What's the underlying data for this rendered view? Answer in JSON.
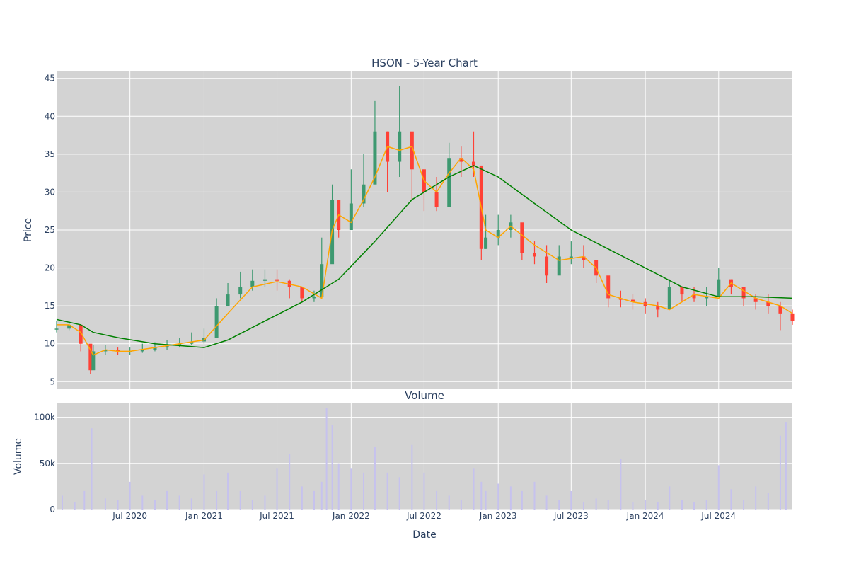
{
  "chart_data": [
    {
      "type": "candlestick",
      "title": "HSON - 5-Year Chart",
      "xlabel": "",
      "ylabel": "Price",
      "ylim": [
        4,
        46
      ],
      "yticks": [
        5,
        10,
        15,
        20,
        25,
        30,
        35,
        40,
        45
      ],
      "xrange": [
        "2020-01-01",
        "2024-12-31"
      ],
      "grid": true,
      "colors": {
        "increasing": "#3d9970",
        "decreasing": "#ff4136",
        "ma_short": "#ffa500",
        "ma_long": "#008000",
        "plot_bg": "#d3d3d3",
        "grid": "#ffffff"
      },
      "series": [
        {
          "kind": "ohlc",
          "x": [
            "2020-01-01",
            "2020-02-01",
            "2020-03-01",
            "2020-03-25",
            "2020-04-01",
            "2020-05-01",
            "2020-06-01",
            "2020-07-01",
            "2020-08-01",
            "2020-09-01",
            "2020-10-01",
            "2020-11-01",
            "2020-12-01",
            "2021-01-01",
            "2021-02-01",
            "2021-03-01",
            "2021-04-01",
            "2021-05-01",
            "2021-06-01",
            "2021-07-01",
            "2021-08-01",
            "2021-09-01",
            "2021-10-01",
            "2021-10-20",
            "2021-11-15",
            "2021-12-01",
            "2022-01-01",
            "2022-02-01",
            "2022-03-01",
            "2022-04-01",
            "2022-05-01",
            "2022-06-01",
            "2022-07-01",
            "2022-08-01",
            "2022-09-01",
            "2022-10-01",
            "2022-11-01",
            "2022-11-20",
            "2022-12-01",
            "2023-01-01",
            "2023-02-01",
            "2023-03-01",
            "2023-04-01",
            "2023-05-01",
            "2023-06-01",
            "2023-07-01",
            "2023-08-01",
            "2023-09-01",
            "2023-10-01",
            "2023-11-01",
            "2023-12-01",
            "2024-01-01",
            "2024-02-01",
            "2024-03-01",
            "2024-04-01",
            "2024-05-01",
            "2024-06-01",
            "2024-07-01",
            "2024-08-01",
            "2024-09-01",
            "2024-10-01",
            "2024-11-01",
            "2024-12-01",
            "2024-12-31"
          ],
          "close": [
            12.0,
            12.5,
            10.0,
            6.5,
            9.0,
            9.2,
            9.0,
            9.0,
            9.2,
            9.5,
            9.8,
            10.0,
            10.3,
            10.8,
            15.0,
            16.5,
            17.5,
            18.3,
            18.5,
            18.3,
            17.5,
            16.0,
            16.2,
            20.5,
            29.0,
            25.0,
            28.5,
            31.0,
            38.0,
            34.0,
            38.0,
            33.0,
            30.0,
            28.0,
            34.5,
            34.0,
            33.5,
            22.5,
            24.0,
            25.0,
            26.0,
            22.0,
            21.5,
            19.0,
            21.5,
            21.5,
            21.0,
            19.0,
            16.0,
            15.8,
            15.5,
            15.0,
            14.5,
            17.5,
            16.5,
            16.0,
            16.2,
            18.5,
            17.5,
            16.0,
            15.5,
            15.0,
            14.0,
            13.0
          ],
          "high": [
            13.0,
            13.0,
            12.0,
            8.0,
            9.8,
            9.8,
            9.5,
            9.5,
            10.0,
            10.2,
            10.5,
            10.8,
            11.5,
            12.0,
            16.0,
            18.0,
            19.5,
            19.8,
            19.8,
            19.8,
            18.5,
            17.0,
            17.0,
            24.0,
            31.0,
            28.0,
            33.0,
            35.0,
            42.0,
            38.0,
            44.0,
            35.0,
            33.0,
            32.0,
            36.5,
            36.0,
            38.0,
            26.0,
            27.0,
            27.0,
            27.0,
            24.0,
            23.5,
            23.0,
            23.0,
            23.5,
            23.0,
            20.5,
            17.5,
            17.0,
            16.5,
            16.0,
            15.5,
            18.5,
            17.5,
            17.5,
            17.5,
            20.0,
            18.5,
            17.0,
            16.5,
            16.5,
            15.5,
            14.5
          ],
          "low": [
            11.5,
            11.8,
            9.0,
            6.0,
            8.5,
            8.5,
            8.5,
            8.5,
            8.8,
            9.0,
            9.2,
            9.5,
            9.8,
            10.0,
            13.0,
            15.0,
            16.0,
            17.0,
            17.5,
            17.0,
            16.0,
            15.5,
            15.5,
            20.0,
            22.0,
            24.0,
            25.0,
            28.0,
            32.0,
            30.0,
            32.0,
            29.0,
            27.5,
            27.5,
            32.0,
            32.0,
            32.0,
            21.0,
            22.5,
            23.0,
            24.0,
            21.0,
            20.5,
            18.0,
            19.5,
            20.5,
            20.0,
            18.0,
            14.8,
            14.8,
            14.5,
            14.0,
            13.5,
            16.0,
            15.5,
            15.5,
            15.0,
            16.5,
            16.5,
            15.0,
            14.5,
            14.0,
            11.8,
            12.5
          ]
        },
        {
          "kind": "line",
          "x": [
            "2020-01-01",
            "2020-02-01",
            "2020-03-01",
            "2020-04-01",
            "2020-05-01",
            "2020-06-01",
            "2020-07-01",
            "2020-09-01",
            "2020-11-01",
            "2021-01-01",
            "2021-03-01",
            "2021-05-01",
            "2021-07-01",
            "2021-09-01",
            "2021-10-20",
            "2021-11-15",
            "2021-12-01",
            "2022-01-01",
            "2022-02-01",
            "2022-03-01",
            "2022-04-01",
            "2022-05-01",
            "2022-06-01",
            "2022-07-01",
            "2022-08-01",
            "2022-09-01",
            "2022-10-01",
            "2022-11-01",
            "2022-12-01",
            "2023-01-01",
            "2023-02-01",
            "2023-04-01",
            "2023-06-01",
            "2023-08-01",
            "2023-09-01",
            "2023-10-01",
            "2023-12-01",
            "2024-02-01",
            "2024-03-01",
            "2024-05-01",
            "2024-07-01",
            "2024-08-01",
            "2024-10-01",
            "2024-12-01",
            "2024-12-31"
          ],
          "values": [
            12.5,
            12.5,
            11.5,
            8.5,
            9.2,
            9.0,
            9.0,
            9.5,
            10.0,
            10.5,
            14.0,
            17.5,
            18.2,
            17.5,
            16.0,
            25.0,
            27.0,
            26.0,
            29.0,
            32.0,
            36.0,
            35.5,
            36.0,
            31.5,
            30.0,
            32.5,
            34.5,
            33.0,
            25.0,
            24.0,
            25.5,
            23.0,
            21.0,
            21.5,
            20.0,
            16.5,
            15.5,
            15.0,
            14.5,
            16.5,
            16.0,
            18.0,
            16.0,
            15.0,
            14.0
          ]
        },
        {
          "kind": "line",
          "x": [
            "2020-01-01",
            "2020-03-01",
            "2020-04-01",
            "2020-06-01",
            "2020-09-01",
            "2021-01-01",
            "2021-03-01",
            "2021-06-01",
            "2021-09-01",
            "2021-12-01",
            "2022-03-01",
            "2022-06-01",
            "2022-09-01",
            "2022-11-01",
            "2023-01-01",
            "2023-04-01",
            "2023-07-01",
            "2023-10-01",
            "2024-01-01",
            "2024-04-01",
            "2024-07-01",
            "2024-10-01",
            "2024-12-31"
          ],
          "values": [
            13.2,
            12.5,
            11.5,
            10.8,
            10.0,
            9.5,
            10.5,
            13.0,
            15.5,
            18.5,
            23.5,
            29.0,
            32.0,
            33.5,
            32.0,
            28.5,
            25.0,
            22.5,
            20.0,
            17.5,
            16.2,
            16.2,
            16.0
          ]
        }
      ]
    },
    {
      "type": "bar",
      "title": "Volume",
      "xlabel": "Date",
      "ylabel": "Volume",
      "ylim": [
        0,
        115000
      ],
      "yticks": [
        0,
        50000,
        100000
      ],
      "ytick_labels": [
        "0",
        "50k",
        "100k"
      ],
      "xticks": [
        "2020-07-01",
        "2021-01-01",
        "2021-07-01",
        "2022-01-01",
        "2022-07-01",
        "2023-01-01",
        "2023-07-01",
        "2024-01-01",
        "2024-07-01"
      ],
      "xtick_labels": [
        "Jul 2020",
        "Jan 2021",
        "Jul 2021",
        "Jan 2022",
        "Jul 2022",
        "Jan 2023",
        "Jul 2023",
        "Jan 2024",
        "Jul 2024"
      ],
      "grid": true,
      "colors": {
        "bar": "#c6c2ee",
        "plot_bg": "#d3d3d3",
        "grid": "#ffffff"
      },
      "x": [
        "2020-01-15",
        "2020-02-15",
        "2020-03-10",
        "2020-03-28",
        "2020-05-01",
        "2020-06-01",
        "2020-07-01",
        "2020-08-01",
        "2020-09-01",
        "2020-10-01",
        "2020-11-01",
        "2020-12-01",
        "2021-01-01",
        "2021-02-01",
        "2021-03-01",
        "2021-04-01",
        "2021-05-01",
        "2021-06-01",
        "2021-07-01",
        "2021-08-01",
        "2021-09-01",
        "2021-10-01",
        "2021-10-20",
        "2021-11-01",
        "2021-11-15",
        "2021-12-01",
        "2022-01-01",
        "2022-02-01",
        "2022-03-01",
        "2022-04-01",
        "2022-05-01",
        "2022-06-01",
        "2022-07-01",
        "2022-08-01",
        "2022-09-01",
        "2022-10-01",
        "2022-11-01",
        "2022-11-20",
        "2022-12-01",
        "2023-01-01",
        "2023-02-01",
        "2023-03-01",
        "2023-04-01",
        "2023-05-01",
        "2023-06-01",
        "2023-07-01",
        "2023-08-01",
        "2023-09-01",
        "2023-10-01",
        "2023-11-01",
        "2023-12-01",
        "2024-01-01",
        "2024-02-01",
        "2024-03-01",
        "2024-04-01",
        "2024-05-01",
        "2024-06-01",
        "2024-07-01",
        "2024-08-01",
        "2024-09-01",
        "2024-10-01",
        "2024-11-01",
        "2024-12-01",
        "2024-12-15"
      ],
      "values": [
        15000,
        8000,
        20000,
        88000,
        12000,
        10000,
        30000,
        15000,
        10000,
        20000,
        15000,
        12000,
        38000,
        20000,
        40000,
        20000,
        10000,
        15000,
        45000,
        60000,
        25000,
        20000,
        30000,
        110000,
        92000,
        50000,
        45000,
        40000,
        68000,
        40000,
        35000,
        70000,
        40000,
        20000,
        15000,
        10000,
        45000,
        30000,
        20000,
        28000,
        25000,
        20000,
        30000,
        15000,
        10000,
        20000,
        8000,
        12000,
        10000,
        55000,
        8000,
        10000,
        8000,
        25000,
        10000,
        8000,
        10000,
        48000,
        22000,
        10000,
        25000,
        18000,
        80000,
        95000
      ]
    }
  ]
}
